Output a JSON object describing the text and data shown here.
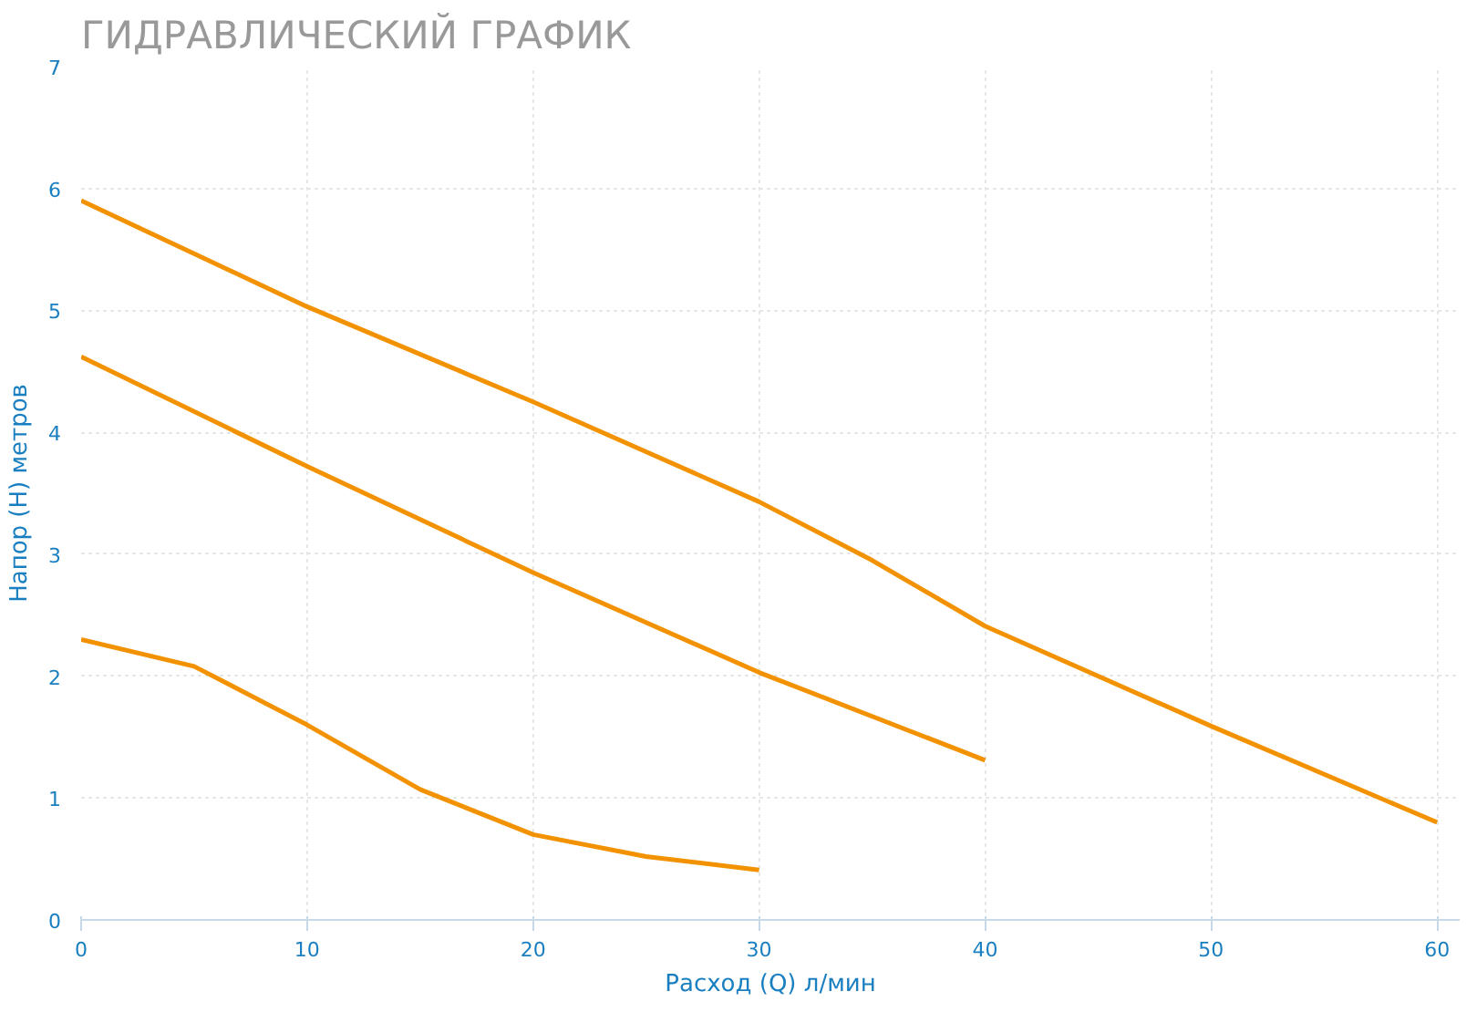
{
  "chart_data": {
    "type": "line",
    "title": "ГИДРАВЛИЧЕСКИЙ ГРАФИК",
    "xlabel": "Расход (Q) л/мин",
    "ylabel": "Напор (H) метров",
    "xlim": [
      0,
      61
    ],
    "ylim": [
      0,
      7
    ],
    "xticks": [
      0,
      10,
      20,
      30,
      40,
      50,
      60
    ],
    "yticks": [
      0,
      1,
      2,
      3,
      4,
      5,
      6,
      7
    ],
    "grid": true,
    "line_style": "solid",
    "marker": "none",
    "series": [
      {
        "color": "#f39200",
        "x": [
          0,
          10,
          20,
          30,
          35,
          40,
          50,
          60
        ],
        "values": [
          5.9,
          5.03,
          4.25,
          3.43,
          2.95,
          2.41,
          1.59,
          0.8
        ]
      },
      {
        "color": "#f39200",
        "x": [
          0,
          10,
          20,
          30,
          40
        ],
        "values": [
          4.62,
          3.72,
          2.85,
          2.03,
          1.31
        ]
      },
      {
        "color": "#f39200",
        "x": [
          0,
          5,
          10,
          15,
          20,
          25,
          30
        ],
        "values": [
          2.3,
          2.08,
          1.6,
          1.07,
          0.7,
          0.52,
          0.41
        ]
      }
    ]
  }
}
